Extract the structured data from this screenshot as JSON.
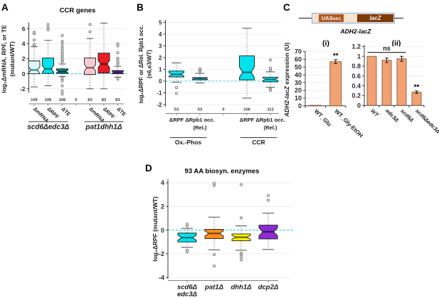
{
  "panels": {
    "a": {
      "letter": "A"
    },
    "b": {
      "letter": "B"
    },
    "c": {
      "letter": "C",
      "construct": {
        "uas_main": "UAS",
        "uas_sub": "Adr1",
        "lacz": "lacZ",
        "caption": "ADH2-lacZ"
      },
      "sub_i": "(i)",
      "sub_ii": "(ii)"
    },
    "d": {
      "letter": "D"
    }
  },
  "colors": {
    "cyan": "#00E2EC",
    "pale_cyan": "#DCF7F7",
    "teal": "#00898F",
    "pink": "#F5CBD3",
    "red": "#EC1C24",
    "purple_a": "#7A2FC6",
    "orange": "#FF8E1A",
    "yellow": "#FFF000",
    "purple_d": "#8C2BD2",
    "bar_fill": "#F2A173",
    "bar_border": "#8C5A3C",
    "zero_line": "#00C5CE",
    "grid": "#E9E9E9",
    "construct_border": "#8FAADC",
    "construct_bg": "#F7E3CE",
    "uas_fill": "#AD5B22",
    "lacz_fill": "#7E3A08"
  },
  "chart_data": [
    {
      "id": "ccr-genes-boxplot",
      "panel": "A",
      "type": "box",
      "title": "CCR genes",
      "ylabel_lines": [
        "log₂ΔmRNA, RPF, or TE",
        "(mutant/WT)"
      ],
      "ylim": [
        -2.54,
        6.84
      ],
      "yticks": [
        -2,
        0,
        2,
        4,
        6
      ],
      "ytick_labels": [
        "-2",
        "0",
        "2",
        "4",
        "6"
      ],
      "zero_line": true,
      "grid": true,
      "slots": [
        {
          "label": "ΔmRNA",
          "n": "106",
          "fill": "#DCF7F7",
          "median_color": "#3d8a8a",
          "q1": 0.0,
          "median": 0.5,
          "q3": 1.7,
          "whisker_low": -1.75,
          "whisker_high": 3.6,
          "outliers": [
            3.75,
            3.92,
            4.5,
            5.35,
            5.52
          ]
        },
        {
          "label": "ΔRPF",
          "n": "106",
          "fill": "#00E2EC",
          "median_color": "#00747c",
          "q1": 0.05,
          "median": 0.65,
          "q3": 2.1,
          "whisker_low": -1.6,
          "whisker_high": 4.45,
          "outliers": [
            5.85,
            6.15,
            6.55
          ]
        },
        {
          "label": "ΔTE",
          "n": "106",
          "fill": "#00898F",
          "median_color": "#00383c",
          "q1": 0.05,
          "median": 0.3,
          "q3": 0.65,
          "whisker_low": -0.35,
          "whisker_high": 1.3,
          "outliers": [
            1.6,
            1.8,
            2.0,
            2.3,
            2.5,
            2.75,
            3.0,
            3.3,
            3.6,
            4.0,
            4.3,
            5.1,
            -0.6,
            -0.95,
            -1.6,
            -2.3,
            -2.7
          ]
        },
        {
          "label": "",
          "n": "0"
        },
        {
          "label": "ΔmRNA",
          "n": "83",
          "fill": "#F5CBD3",
          "median_color": "#9c4a5e",
          "q1": -0.1,
          "median": 0.8,
          "q3": 2.1,
          "whisker_low": -2.0,
          "whisker_high": 4.7,
          "outliers": [
            5.6,
            6.55
          ]
        },
        {
          "label": "ΔRPF",
          "n": "83",
          "fill": "#EC1C24",
          "median_color": "#6b0b10",
          "q1": 0.1,
          "median": 1.3,
          "q3": 2.75,
          "whisker_low": -2.0,
          "whisker_high": 6.75,
          "outliers": []
        },
        {
          "label": "ΔTE",
          "n": "83",
          "fill": "#7A2FC6",
          "median_color": "#2e1054",
          "q1": 0.0,
          "median": 0.2,
          "q3": 0.42,
          "whisker_low": -0.45,
          "whisker_high": 1.0,
          "outliers": [
            1.3,
            1.5,
            1.75,
            2.05,
            2.8,
            3.7,
            4.0,
            -0.7
          ]
        }
      ],
      "groups": [
        {
          "label": "scd6Δedc3Δ",
          "start": 0,
          "end": 2
        },
        {
          "label": "pat1dhh1Δ",
          "start": 4,
          "end": 6
        }
      ]
    },
    {
      "id": "rpf-rpb1-boxplot",
      "panel": "B",
      "type": "box",
      "title": "",
      "ylabel_lines": [
        "log₂ΔRPF or ΔRel. Rpb1 occ.",
        "(s6,e3/WT)"
      ],
      "ylim": [
        -2.18,
        5.21
      ],
      "yticks": [
        -2,
        -1,
        0,
        1,
        2,
        3,
        4,
        5
      ],
      "ytick_labels": [
        "-2",
        "-1",
        "0",
        "1",
        "2",
        "3",
        "4",
        "5"
      ],
      "zero_line": true,
      "grid": true,
      "slots": [
        {
          "label": "ΔRPF",
          "n": "53",
          "fill": "#00E2EC",
          "median_color": "#00747c",
          "q1": 0.35,
          "median": 0.57,
          "q3": 0.86,
          "whisker_low": -0.1,
          "whisker_high": 1.55,
          "outliers": [
            -0.55,
            -1.05
          ]
        },
        {
          "label": "ΔRpb1 occ.",
          "label2": "(Rel.)",
          "n": "53",
          "fill": "#00E2EC",
          "median_color": "#00747c",
          "q1": 0.11,
          "median": 0.21,
          "q3": 0.3,
          "whisker_low": -0.16,
          "whisker_high": 0.66,
          "outliers": [
            0.83,
            0.95,
            1.05
          ]
        },
        {
          "label": "",
          "n": "0"
        },
        {
          "label": "ΔRPF",
          "n": "106",
          "fill": "#00E2EC",
          "median_color": "#00747c",
          "q1": 0.1,
          "median": 0.75,
          "q3": 2.15,
          "whisker_low": -1.45,
          "whisker_high": 4.5,
          "outliers": []
        },
        {
          "label": "ΔRpb1 occ.",
          "label2": "(Rel.)",
          "n": "112",
          "fill": "#00E2EC",
          "median_color": "#00747c",
          "q1": -0.06,
          "median": 0.15,
          "q3": 0.33,
          "whisker_low": -0.53,
          "whisker_high": 0.79,
          "outliers": [
            0.95,
            1.1,
            1.8,
            -0.68,
            -0.8
          ]
        }
      ],
      "groups": [
        {
          "label": "Ox.-Phos",
          "start": 0,
          "end": 1
        },
        {
          "label": "CCR",
          "start": 3,
          "end": 4
        }
      ]
    },
    {
      "id": "adh2-lacz-bars-i",
      "panel": "C",
      "type": "bar",
      "subtitle": "(i)",
      "ylabel_parts": [
        {
          "text": "ADH2-lacZ",
          "italic": true
        },
        {
          "text": " expression (U)",
          "italic": false
        }
      ],
      "ylim": [
        0,
        70
      ],
      "yticks": [
        0,
        10,
        20,
        30,
        40,
        50,
        60,
        70
      ],
      "ytick_labels": [
        "0",
        "10",
        "20",
        "30",
        "40",
        "50",
        "60",
        "70"
      ],
      "grid": true,
      "categories": [
        "WT_Glu",
        "WT_Gly-EtOH"
      ],
      "values": [
        0.7,
        57
      ],
      "errors": [
        0,
        2.5
      ],
      "italic_categories": false,
      "annotations": [
        {
          "type": "stars",
          "text": "**",
          "category": 1
        }
      ]
    },
    {
      "id": "adh2-lacz-bars-ii",
      "panel": "C",
      "type": "bar",
      "subtitle": "(ii)",
      "ylabel_parts": [],
      "ylim": [
        0,
        1.235
      ],
      "yticks": [
        0,
        0.2,
        0.4,
        0.6,
        0.8,
        1,
        1.2
      ],
      "ytick_labels": [
        "0",
        "0.2",
        "0.4",
        "0.6",
        "0.8",
        "1",
        "1.2"
      ],
      "grid": true,
      "categories": [
        "WT",
        "edc3Δ",
        "scd6Δ",
        "scd6Δedc3Δ"
      ],
      "values": [
        1.0,
        0.92,
        0.95,
        0.27
      ],
      "errors": [
        0,
        0.045,
        0.05,
        0.025
      ],
      "italic_categories": true,
      "annotations": [
        {
          "type": "bracket",
          "text": "ns",
          "from": 0,
          "to": 2,
          "value": 1.08
        },
        {
          "type": "stars",
          "text": "**",
          "category": 3
        }
      ]
    },
    {
      "id": "aa-biosyn-boxplot",
      "panel": "D",
      "type": "box",
      "title": "93 AA biosyn. enzymes",
      "ylabel_lines": [
        "log₂ΔRPF (mutant/WT)"
      ],
      "ylim": [
        -4.11,
        4.3
      ],
      "yticks": [
        -4,
        -2,
        0,
        2,
        4
      ],
      "ytick_labels": [
        "-4",
        "-2",
        "0",
        "2",
        "4"
      ],
      "zero_line": true,
      "grid": true,
      "slots": [
        {
          "label": "scd6Δ",
          "label2": "edc3Δ",
          "fill": "#00E2EC",
          "median_color": "#00747c",
          "q1": -1.0,
          "median": -0.64,
          "q3": -0.25,
          "whisker_low": -1.45,
          "whisker_high": 0.15,
          "outliers": [
            0.35,
            0.5,
            -1.7,
            -1.85
          ]
        },
        {
          "label": "pat1Δ",
          "fill": "#FF8E1A",
          "median_color": "#7a4300",
          "q1": -0.71,
          "median": -0.28,
          "q3": 0.07,
          "whisker_low": -1.66,
          "whisker_high": 1.1,
          "outliers": [
            3.96,
            3.77,
            -2.07,
            -3.03
          ]
        },
        {
          "label": "dhh1Δ",
          "fill": "#FFF000",
          "median_color": "#6f6800",
          "q1": -0.9,
          "median": -0.6,
          "q3": -0.32,
          "whisker_low": -1.7,
          "whisker_high": 0.36,
          "outliers": [
            3.84,
            1.03,
            -1.95,
            -2.1,
            -2.25,
            -2.5
          ]
        },
        {
          "label": "dcp2Δ",
          "fill": "#8C2BD2",
          "median_color": "#38106b",
          "q1": -0.74,
          "median": -0.14,
          "q3": 0.42,
          "whisker_low": -1.63,
          "whisker_high": 1.43,
          "outliers": [
            2.52,
            2.92
          ]
        }
      ],
      "groups": []
    }
  ]
}
